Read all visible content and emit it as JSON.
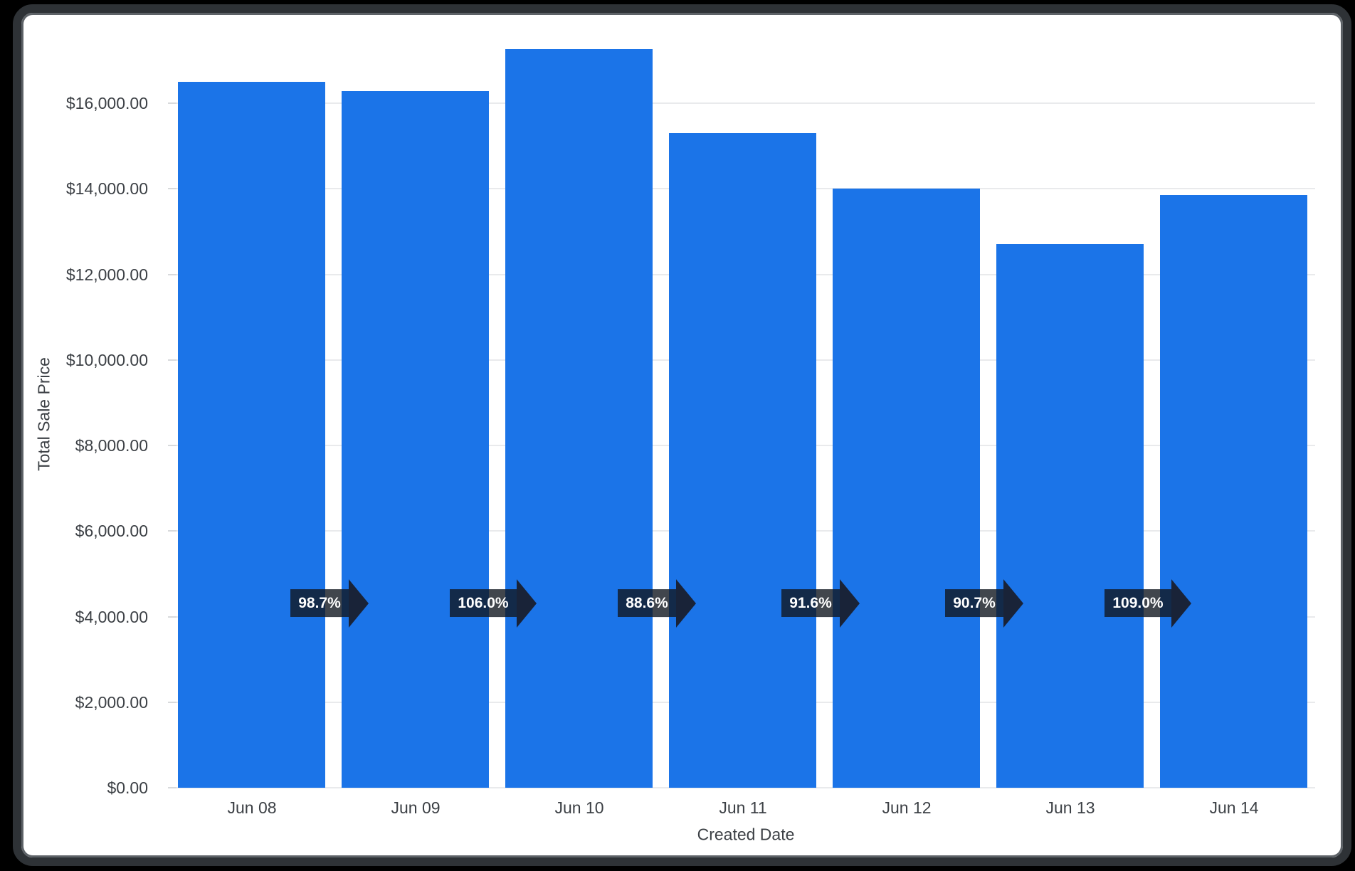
{
  "page": {
    "background_color": "#000000",
    "card_background_color": "#ffffff",
    "frame_border_color": "#2e3236"
  },
  "chart_data": {
    "type": "bar",
    "title": "",
    "xlabel": "Created Date",
    "ylabel": "Total Sale Price",
    "categories": [
      "Jun 08",
      "Jun 09",
      "Jun 10",
      "Jun 11",
      "Jun 12",
      "Jun 13",
      "Jun 14"
    ],
    "series": [
      {
        "name": "Total Sale Price",
        "values": [
          16500,
          16290,
          17265,
          15295,
          14010,
          12705,
          13850
        ]
      }
    ],
    "percent_change_labels": [
      {
        "from": "Jun 08",
        "to": "Jun 09",
        "label": "98.7%"
      },
      {
        "from": "Jun 09",
        "to": "Jun 10",
        "label": "106.0%"
      },
      {
        "from": "Jun 10",
        "to": "Jun 11",
        "label": "88.6%"
      },
      {
        "from": "Jun 11",
        "to": "Jun 12",
        "label": "91.6%"
      },
      {
        "from": "Jun 12",
        "to": "Jun 13",
        "label": "90.7%"
      },
      {
        "from": "Jun 13",
        "to": "Jun 14",
        "label": "109.0%"
      }
    ],
    "y_tick_values": [
      0,
      2000,
      4000,
      6000,
      8000,
      10000,
      12000,
      14000,
      16000
    ],
    "y_tick_labels": [
      "$0.00",
      "$2,000.00",
      "$4,000.00",
      "$6,000.00",
      "$8,000.00",
      "$10,000.00",
      "$12,000.00",
      "$14,000.00",
      "$16,000.00"
    ],
    "ylim": [
      0,
      17400
    ],
    "grid": true,
    "legend": "none",
    "style": {
      "bar_color": "#1b74e8",
      "text_color": "#3c4045",
      "gridline_color": "#e9eaec",
      "tick_color": "#d8dadc",
      "arrow_body_color": "rgba(17,24,32,0.8)",
      "arrow_head_color": "#192338",
      "arrow_text_color": "#ffffff"
    }
  }
}
